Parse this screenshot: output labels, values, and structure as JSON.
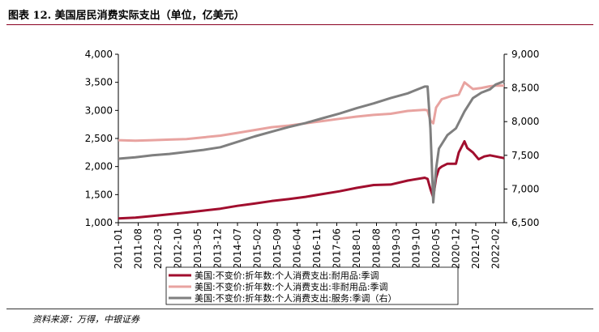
{
  "header": {
    "title": "图表 12. 美国居民消费实际支出（单位，亿美元）"
  },
  "footer": {
    "source": "资料来源：万得，中银证券"
  },
  "colors": {
    "durable": "#a10e2e",
    "nondurable": "#e8a3a0",
    "services": "#7f7f7f",
    "title_rule": "#8a0021"
  },
  "chart_data": {
    "type": "line",
    "title": "",
    "xlabel": "",
    "ylabel": "",
    "grid": false,
    "legend_position": "bottom",
    "ylim_left": [
      1000,
      4000
    ],
    "yticks_left": [
      1000,
      1500,
      2000,
      2500,
      3000,
      3500,
      4000
    ],
    "ytick_labels_left": [
      "1,000",
      "1,500",
      "2,000",
      "2,500",
      "3,000",
      "3,500",
      "4,000"
    ],
    "ylim_right": [
      6500,
      9000
    ],
    "yticks_right": [
      6500,
      7000,
      7500,
      8000,
      8500,
      9000
    ],
    "ytick_labels_right": [
      "6,500",
      "7,000",
      "7,500",
      "8,000",
      "8,500",
      "9,000"
    ],
    "x_range": [
      "2011-01",
      "2022-05"
    ],
    "x_tick_labels": [
      "2011-01",
      "2011-08",
      "2012-03",
      "2012-10",
      "2013-05",
      "2013-12",
      "2014-07",
      "2015-02",
      "2015-09",
      "2016-04",
      "2016-11",
      "2017-06",
      "2018-01",
      "2018-08",
      "2019-03",
      "2019-10",
      "2020-05",
      "2020-12",
      "2021-07",
      "2022-02"
    ],
    "series": [
      {
        "name": "美国:不变价:折年数:个人消费支出:耐用品:季调",
        "axis": "left",
        "points": [
          [
            "2011-01",
            1075
          ],
          [
            "2011-07",
            1090
          ],
          [
            "2012-01",
            1120
          ],
          [
            "2012-07",
            1150
          ],
          [
            "2013-01",
            1180
          ],
          [
            "2013-07",
            1215
          ],
          [
            "2014-01",
            1250
          ],
          [
            "2014-07",
            1300
          ],
          [
            "2015-01",
            1340
          ],
          [
            "2015-07",
            1385
          ],
          [
            "2016-01",
            1420
          ],
          [
            "2016-07",
            1460
          ],
          [
            "2017-01",
            1510
          ],
          [
            "2017-07",
            1560
          ],
          [
            "2018-01",
            1620
          ],
          [
            "2018-07",
            1670
          ],
          [
            "2019-01",
            1680
          ],
          [
            "2019-07",
            1750
          ],
          [
            "2020-01",
            1800
          ],
          [
            "2020-02",
            1780
          ],
          [
            "2020-03",
            1600
          ],
          [
            "2020-04",
            1450
          ],
          [
            "2020-05",
            1800
          ],
          [
            "2020-06",
            1960
          ],
          [
            "2020-07",
            2000
          ],
          [
            "2020-09",
            2050
          ],
          [
            "2020-12",
            2050
          ],
          [
            "2021-01",
            2250
          ],
          [
            "2021-03",
            2450
          ],
          [
            "2021-04",
            2330
          ],
          [
            "2021-06",
            2250
          ],
          [
            "2021-08",
            2130
          ],
          [
            "2021-10",
            2180
          ],
          [
            "2021-12",
            2200
          ],
          [
            "2022-02",
            2180
          ],
          [
            "2022-05",
            2150
          ]
        ]
      },
      {
        "name": "美国:不变价:折年数:个人消费支出:非耐用品:季调",
        "axis": "left",
        "points": [
          [
            "2011-01",
            2470
          ],
          [
            "2011-07",
            2460
          ],
          [
            "2012-01",
            2470
          ],
          [
            "2012-07",
            2480
          ],
          [
            "2013-01",
            2490
          ],
          [
            "2013-07",
            2520
          ],
          [
            "2014-01",
            2550
          ],
          [
            "2014-07",
            2600
          ],
          [
            "2015-01",
            2650
          ],
          [
            "2015-07",
            2700
          ],
          [
            "2016-01",
            2730
          ],
          [
            "2016-07",
            2770
          ],
          [
            "2017-01",
            2810
          ],
          [
            "2017-07",
            2850
          ],
          [
            "2018-01",
            2890
          ],
          [
            "2018-07",
            2920
          ],
          [
            "2019-01",
            2940
          ],
          [
            "2019-07",
            2990
          ],
          [
            "2020-01",
            3010
          ],
          [
            "2020-02",
            3000
          ],
          [
            "2020-03",
            2820
          ],
          [
            "2020-04",
            2770
          ],
          [
            "2020-05",
            3050
          ],
          [
            "2020-07",
            3200
          ],
          [
            "2020-10",
            3250
          ],
          [
            "2021-01",
            3280
          ],
          [
            "2021-03",
            3500
          ],
          [
            "2021-06",
            3380
          ],
          [
            "2021-09",
            3400
          ],
          [
            "2021-12",
            3430
          ],
          [
            "2022-02",
            3440
          ],
          [
            "2022-05",
            3440
          ]
        ]
      },
      {
        "name": "美国:不变价:折年数:个人消费支出:服务:季调（右）",
        "axis": "right",
        "points": [
          [
            "2011-01",
            7450
          ],
          [
            "2011-07",
            7470
          ],
          [
            "2012-01",
            7500
          ],
          [
            "2012-07",
            7520
          ],
          [
            "2013-01",
            7550
          ],
          [
            "2013-07",
            7580
          ],
          [
            "2014-01",
            7620
          ],
          [
            "2014-07",
            7700
          ],
          [
            "2015-01",
            7780
          ],
          [
            "2015-07",
            7850
          ],
          [
            "2016-01",
            7920
          ],
          [
            "2016-07",
            7980
          ],
          [
            "2017-01",
            8050
          ],
          [
            "2017-07",
            8120
          ],
          [
            "2018-01",
            8200
          ],
          [
            "2018-07",
            8270
          ],
          [
            "2019-01",
            8350
          ],
          [
            "2019-07",
            8420
          ],
          [
            "2020-01",
            8520
          ],
          [
            "2020-02",
            8520
          ],
          [
            "2020-03",
            7900
          ],
          [
            "2020-04",
            6800
          ],
          [
            "2020-05",
            7300
          ],
          [
            "2020-06",
            7600
          ],
          [
            "2020-09",
            7800
          ],
          [
            "2020-12",
            7900
          ],
          [
            "2021-03",
            8150
          ],
          [
            "2021-06",
            8350
          ],
          [
            "2021-09",
            8430
          ],
          [
            "2021-12",
            8480
          ],
          [
            "2022-02",
            8550
          ],
          [
            "2022-05",
            8600
          ]
        ]
      }
    ]
  }
}
